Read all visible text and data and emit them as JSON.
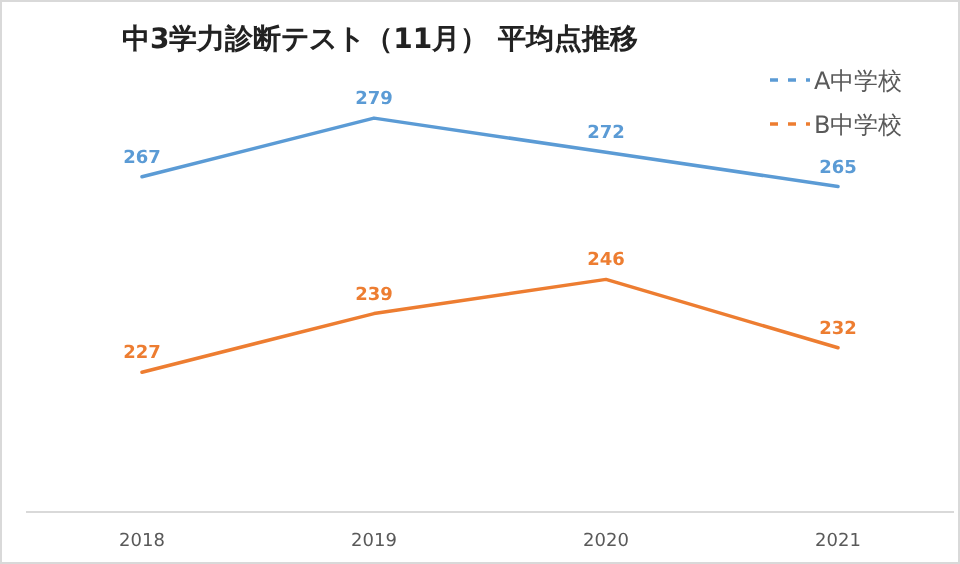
{
  "chart_data": {
    "type": "line",
    "title": "中3学力診断テスト（11月） 平均点推移",
    "categories": [
      "2018",
      "2019",
      "2020",
      "2021"
    ],
    "series": [
      {
        "name": "A中学校",
        "color": "#5b9bd5",
        "values": [
          267,
          279,
          272,
          265
        ]
      },
      {
        "name": "B中学校",
        "color": "#ed7d31",
        "values": [
          227,
          239,
          246,
          232
        ]
      }
    ],
    "data_labels": true,
    "legend": "top right",
    "marker": "none",
    "line_style": "solid",
    "grid": false
  }
}
